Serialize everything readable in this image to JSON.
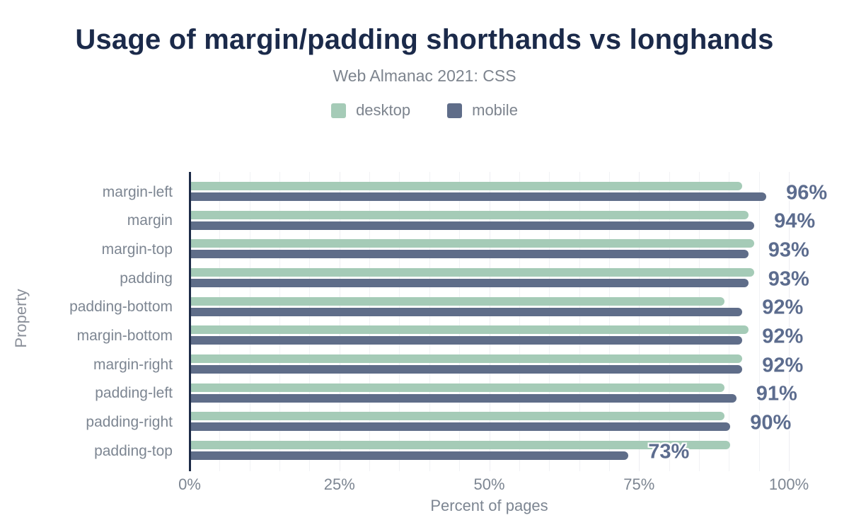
{
  "header": {
    "title": "Usage of margin/padding shorthands vs longhands",
    "subtitle": "Web Almanac 2021: CSS"
  },
  "legend": {
    "items": [
      {
        "label": "desktop",
        "color": "#a5cbb7"
      },
      {
        "label": "mobile",
        "color": "#5f6d89"
      }
    ]
  },
  "axes": {
    "x_title": "Percent of pages",
    "y_title": "Property",
    "x_tick_labels": [
      "0%",
      "25%",
      "50%",
      "75%",
      "100%"
    ]
  },
  "chart_data": {
    "type": "bar",
    "orientation": "horizontal",
    "title": "Usage of margin/padding shorthands vs longhands",
    "subtitle": "Web Almanac 2021: CSS",
    "xlabel": "Percent of pages",
    "ylabel": "Property",
    "xlim": [
      0,
      100
    ],
    "grid": true,
    "gridline_step_percent": 5,
    "legend_position": "top",
    "categories": [
      "margin-left",
      "margin",
      "margin-top",
      "padding",
      "padding-bottom",
      "margin-bottom",
      "margin-right",
      "padding-left",
      "padding-right",
      "padding-top"
    ],
    "series": [
      {
        "name": "desktop",
        "color": "#a5cbb7",
        "values": [
          92,
          93,
          94,
          94,
          89,
          93,
          92,
          89,
          89,
          90
        ]
      },
      {
        "name": "mobile",
        "color": "#5f6d89",
        "values": [
          96,
          94,
          93,
          93,
          92,
          92,
          92,
          91,
          90,
          73
        ]
      }
    ],
    "value_labels": [
      "96%",
      "94%",
      "93%",
      "93%",
      "92%",
      "92%",
      "92%",
      "91%",
      "90%",
      "73%"
    ],
    "value_labels_series": "mobile"
  },
  "colors": {
    "title": "#1b2a4a",
    "subtitle_text": "#7d848e",
    "axis_line": "#1d2b47",
    "gridline": "#f1f2f5",
    "value_label": "#5c6c8e",
    "desktop_bar": "#a5cbb7",
    "mobile_bar": "#5f6d89"
  }
}
